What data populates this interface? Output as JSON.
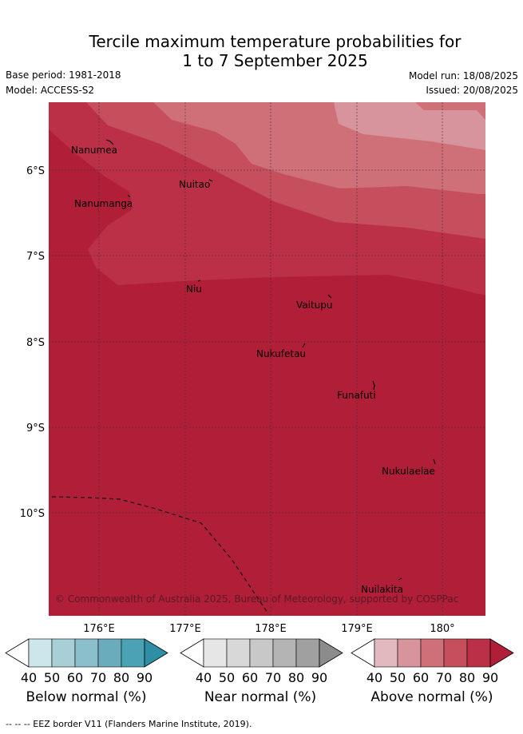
{
  "header": {
    "title_line1": "Tercile maximum temperature probabilities for",
    "title_line2": "1 to 7 September 2025",
    "base_period": "Base period: 1981-2018",
    "model": "Model: ACCESS-S2",
    "model_run": "Model run: 18/08/2025",
    "issued": "Issued: 20/08/2025"
  },
  "map": {
    "lon_labels": [
      "176°E",
      "177°E",
      "178°E",
      "179°E",
      "180°"
    ],
    "lat_labels": [
      "6°S",
      "7°S",
      "8°S",
      "9°S",
      "10°S"
    ],
    "places": [
      {
        "name": "Nanumea"
      },
      {
        "name": "Nuitao"
      },
      {
        "name": "Nanumanga"
      },
      {
        "name": "Niu"
      },
      {
        "name": "Vaitupu"
      },
      {
        "name": "Nukufetau"
      },
      {
        "name": "Funafuti"
      },
      {
        "name": "Nukulaelae"
      },
      {
        "name": "Nuilakita"
      }
    ],
    "credit": "© Commonwealth of Australia 2025, Bureau of Meteorology, supported by COSPPac",
    "colors": {
      "above_40": "#e2b9be",
      "above_50": "#d8949c",
      "above_60": "#cf7079",
      "above_70": "#c54f5c",
      "above_80": "#bb3047",
      "above_90": "#b01e38"
    }
  },
  "colorbars": [
    {
      "label": "Below normal (%)",
      "ticks": [
        "40",
        "50",
        "60",
        "70",
        "80",
        "90"
      ],
      "colors": [
        "#cde6ec",
        "#a9cfd6",
        "#8bbfcb",
        "#6aacbc",
        "#4aa2b4",
        "#2e8ea4"
      ]
    },
    {
      "label": "Near normal (%)",
      "ticks": [
        "40",
        "50",
        "60",
        "70",
        "80",
        "90"
      ],
      "colors": [
        "#e6e6e6",
        "#d8d8d8",
        "#c8c8c8",
        "#b4b4b4",
        "#a0a0a0",
        "#8c8c8c"
      ]
    },
    {
      "label": "Above normal (%)",
      "ticks": [
        "40",
        "50",
        "60",
        "70",
        "80",
        "90"
      ],
      "colors": [
        "#e2b9be",
        "#d8949c",
        "#cf7079",
        "#c54f5c",
        "#bb3047",
        "#b01e38"
      ]
    }
  ],
  "footnote": "--  --  -- EEZ border V11 (Flanders Marine Institute, 2019)."
}
